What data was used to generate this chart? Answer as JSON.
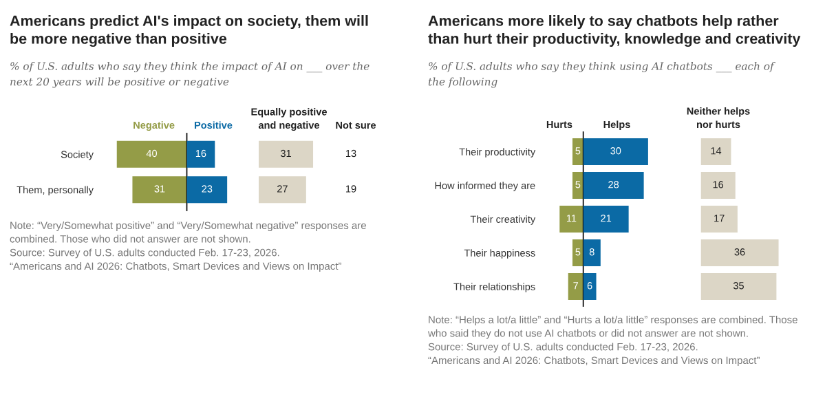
{
  "chart_data": [
    {
      "type": "bar",
      "orientation": "horizontal",
      "title": "Americans predict AI's impact on society, them will be more negative than positive",
      "subtitle": "% of U.S. adults who say they think the impact of AI on ___ over the next 20 years will be positive or negative",
      "categories": [
        "Society",
        "Them, personally"
      ],
      "xlim": [
        40,
        0
      ],
      "series": [
        {
          "name": "Negative",
          "color": "#949c47",
          "values": [
            40,
            31
          ]
        }
      ],
      "data_labels": true,
      "tick_labels": "y",
      "annotations": [
        "Note: “Very/Somewhat positive” and “Very/Somewhat negative” responses are combined. Those who did not answer are not shown.",
        "Source: Survey of U.S. adults conducted Feb. 17-23, 2026.",
        "“Americans and AI 2026: Chatbots, Smart Devices and Views on Impact”"
      ]
    },
    {
      "type": "bar",
      "orientation": "horizontal",
      "categories": [
        null,
        null
      ],
      "series": [
        {
          "name": "Positive",
          "color": "#0b6aa5",
          "values": [
            16,
            23
          ]
        }
      ],
      "data_labels": true
    },
    {
      "type": "bar",
      "orientation": "horizontal",
      "categories": [
        null,
        null
      ],
      "series": [
        {
          "name": "Equally positive and negative",
          "color": "#dcd6c6",
          "values": [
            31,
            27
          ]
        }
      ],
      "data_labels": true
    },
    {
      "type": "other",
      "series": [
        {
          "name": "Not sure",
          "values": [
            13,
            19
          ]
        }
      ],
      "data_labels": true
    },
    {
      "type": "bar",
      "orientation": "horizontal",
      "title": "Americans more likely to say chatbots help rather than hurt their productivity, knowledge and creativity",
      "subtitle": "% of U.S. adults who say they think using AI chatbots ___ each of the following",
      "categories": [
        "Their productivity",
        "How informed they are",
        "Their creativity",
        "Their happiness",
        "Their relationships"
      ],
      "xlim": [
        11,
        0
      ],
      "series": [
        {
          "name": "Hurts",
          "color": "#949c47",
          "values": [
            5,
            5,
            11,
            5,
            7
          ]
        }
      ],
      "data_labels": true,
      "tick_labels": "y",
      "annotations": [
        "Note: “Helps a lot/a little” and “Hurts a lot/a little” responses are combined. Those who said they do not use AI chatbots or did not answer are not shown.",
        "Source: Survey of U.S. adults conducted Feb. 17-23, 2026.",
        "“Americans and AI 2026: Chatbots, Smart Devices and Views on Impact”"
      ]
    },
    {
      "type": "bar",
      "orientation": "horizontal",
      "categories": [
        null,
        null,
        null,
        null,
        null
      ],
      "series": [
        {
          "name": "Helps",
          "color": "#0b6aa5",
          "values": [
            30,
            28,
            21,
            8,
            6
          ]
        }
      ],
      "data_labels": true
    },
    {
      "type": "bar",
      "orientation": "horizontal",
      "categories": [
        null,
        null,
        null,
        null,
        null
      ],
      "series": [
        {
          "name": "Neither helps nor hurts",
          "color": "#dcd6c6",
          "values": [
            14,
            16,
            17,
            36,
            35
          ]
        }
      ],
      "data_labels": true
    }
  ]
}
